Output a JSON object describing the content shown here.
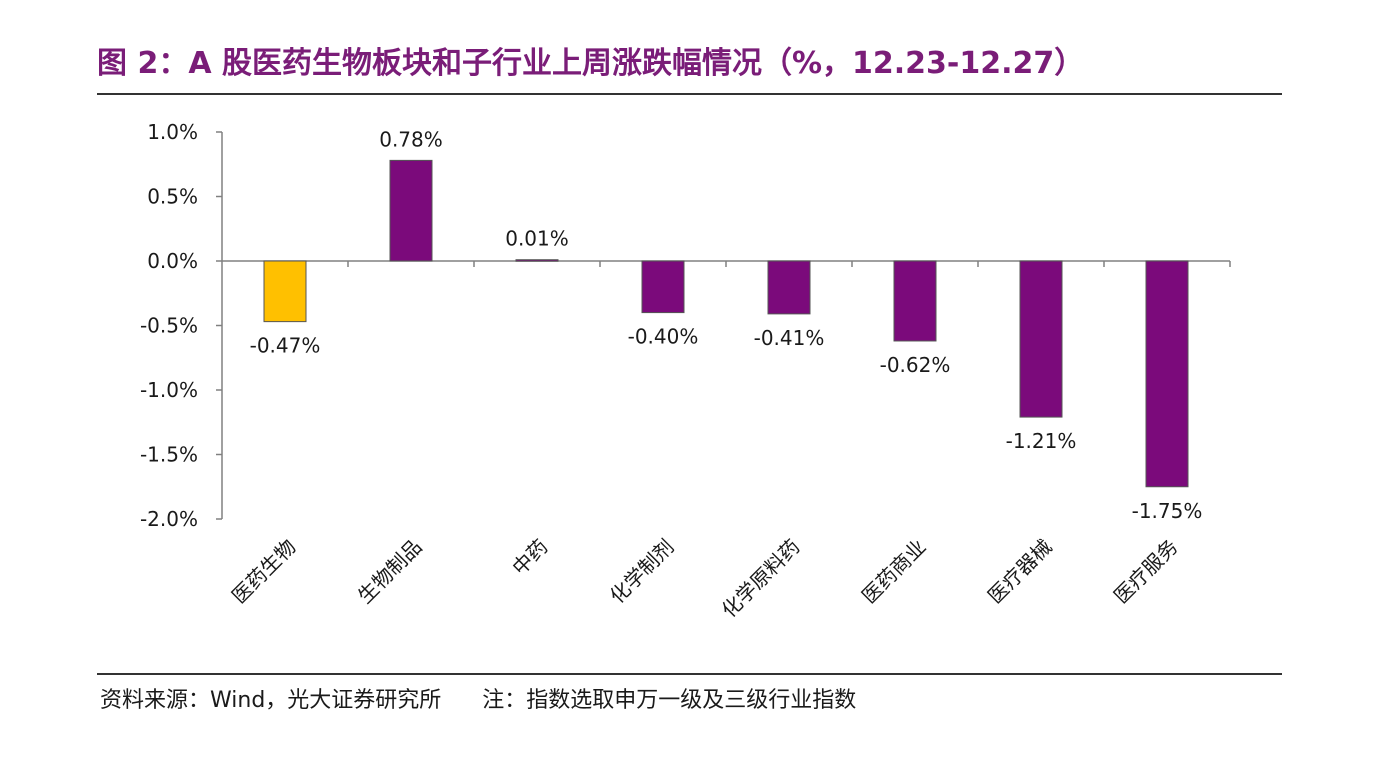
{
  "title": "图 2：A 股医药生物板块和子行业上周涨跌幅情况（%，12.23-12.27）",
  "footer": {
    "source": "资料来源：Wind，光大证券研究所",
    "note": "注：指数选取申万一级及三级行业指数"
  },
  "colors": {
    "title": "#7a1d78",
    "highlight_bar": "#ffc000",
    "bar": "#7b0a7b"
  },
  "chart_data": {
    "type": "bar",
    "categories": [
      "医药生物",
      "生物制品",
      "中药",
      "化学制剂",
      "化学原料药",
      "医药商业",
      "医疗器械",
      "医疗服务"
    ],
    "values": [
      -0.47,
      0.78,
      0.01,
      -0.4,
      -0.41,
      -0.62,
      -1.21,
      -1.75
    ],
    "data_labels": [
      "-0.47%",
      "0.78%",
      "0.01%",
      "-0.40%",
      "-0.41%",
      "-0.62%",
      "-1.21%",
      "-1.75%"
    ],
    "highlight_index": 0,
    "ylim": [
      -2.0,
      1.0
    ],
    "yticks": [
      1.0,
      0.5,
      0.0,
      -0.5,
      -1.0,
      -1.5,
      -2.0
    ],
    "ytick_labels": [
      "1.0%",
      "0.5%",
      "0.0%",
      "-0.5%",
      "-1.0%",
      "-1.5%",
      "-2.0%"
    ],
    "xlabel": "",
    "ylabel": "",
    "grid": false,
    "legend": "none"
  }
}
